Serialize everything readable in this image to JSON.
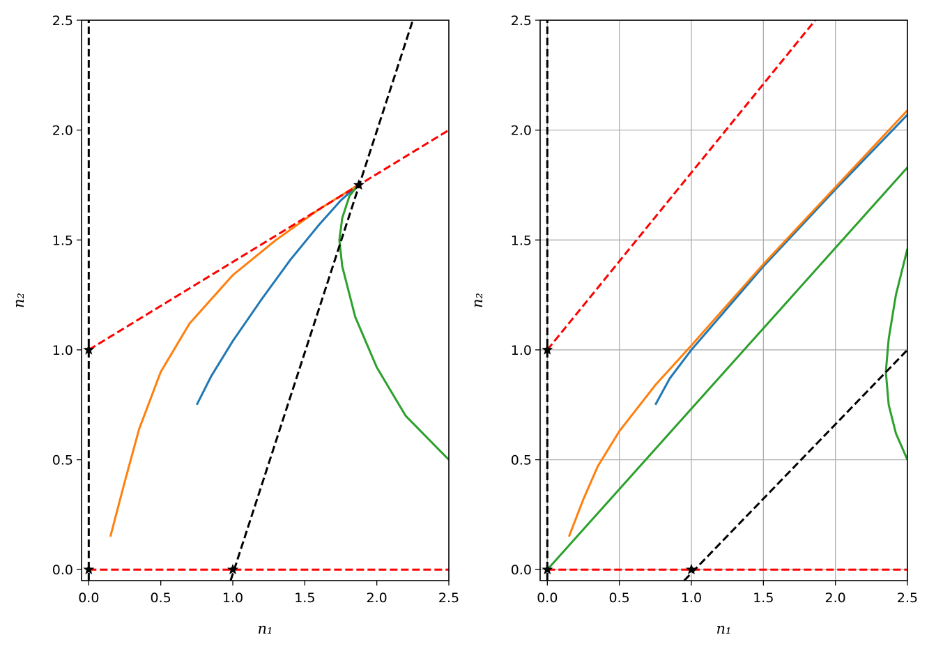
{
  "chart_data": [
    {
      "type": "line",
      "title": "",
      "xlabel": "n₁",
      "ylabel": "n₂",
      "xlim": [
        -0.05,
        2.5
      ],
      "ylim": [
        -0.05,
        2.5
      ],
      "grid": false,
      "xticks": [
        "0.0",
        "0.5",
        "1.0",
        "1.5",
        "2.0",
        "2.5"
      ],
      "yticks": [
        "0.0",
        "0.5",
        "1.0",
        "1.5",
        "2.0",
        "2.5"
      ],
      "series": [
        {
          "color": "#1f77b4",
          "style": "solid",
          "points": [
            [
              0.75,
              0.75
            ],
            [
              0.85,
              0.88
            ],
            [
              1.0,
              1.04
            ],
            [
              1.2,
              1.23
            ],
            [
              1.4,
              1.41
            ],
            [
              1.6,
              1.57
            ],
            [
              1.75,
              1.68
            ],
            [
              1.87,
              1.75
            ]
          ]
        },
        {
          "color": "#ff7f0e",
          "style": "solid",
          "points": [
            [
              0.15,
              0.15
            ],
            [
              0.25,
              0.4
            ],
            [
              0.35,
              0.64
            ],
            [
              0.5,
              0.9
            ],
            [
              0.7,
              1.12
            ],
            [
              1.0,
              1.34
            ],
            [
              1.3,
              1.5
            ],
            [
              1.6,
              1.64
            ],
            [
              1.87,
              1.75
            ]
          ]
        },
        {
          "color": "#2ca02c",
          "style": "solid",
          "points": [
            [
              2.5,
              0.5
            ],
            [
              2.2,
              0.7
            ],
            [
              2.0,
              0.92
            ],
            [
              1.85,
              1.15
            ],
            [
              1.76,
              1.38
            ],
            [
              1.74,
              1.5
            ],
            [
              1.76,
              1.6
            ],
            [
              1.81,
              1.7
            ],
            [
              1.87,
              1.75
            ]
          ]
        },
        {
          "color": "#ff0000",
          "style": "dashed",
          "points": [
            [
              0,
              1
            ],
            [
              2.5,
              2
            ]
          ]
        },
        {
          "color": "#ff0000",
          "style": "dashed",
          "points": [
            [
              0,
              0
            ],
            [
              2.5,
              0
            ]
          ]
        },
        {
          "color": "#000000",
          "style": "dashed",
          "points": [
            [
              0,
              -0.05
            ],
            [
              0,
              2.5
            ]
          ]
        },
        {
          "color": "#000000",
          "style": "dashed",
          "points": [
            [
              0.985,
              -0.05
            ],
            [
              2.25,
              2.5
            ]
          ]
        }
      ],
      "markers": [
        [
          0,
          0
        ],
        [
          1,
          0
        ],
        [
          0,
          1
        ],
        [
          1.875,
          1.75
        ]
      ]
    },
    {
      "type": "line",
      "title": "",
      "xlabel": "n₁",
      "ylabel": "n₂",
      "xlim": [
        -0.05,
        2.5
      ],
      "ylim": [
        -0.05,
        2.5
      ],
      "grid": true,
      "xticks": [
        "0.0",
        "0.5",
        "1.0",
        "1.5",
        "2.0",
        "2.5"
      ],
      "yticks": [
        "0.0",
        "0.5",
        "1.0",
        "1.5",
        "2.0",
        "2.5"
      ],
      "series": [
        {
          "color": "#1f77b4",
          "style": "solid",
          "points": [
            [
              0.75,
              0.75
            ],
            [
              0.85,
              0.87
            ],
            [
              1.0,
              1.0
            ],
            [
              1.5,
              1.38
            ],
            [
              2.0,
              1.73
            ],
            [
              2.5,
              2.07
            ]
          ]
        },
        {
          "color": "#ff7f0e",
          "style": "solid",
          "points": [
            [
              0.15,
              0.15
            ],
            [
              0.25,
              0.32
            ],
            [
              0.35,
              0.47
            ],
            [
              0.5,
              0.63
            ],
            [
              0.75,
              0.84
            ],
            [
              1.0,
              1.02
            ],
            [
              1.5,
              1.39
            ],
            [
              2.0,
              1.74
            ],
            [
              2.5,
              2.09
            ]
          ]
        },
        {
          "color": "#2ca02c",
          "style": "solid",
          "points": [
            [
              0,
              0
            ],
            [
              2.5,
              1.83
            ]
          ]
        },
        {
          "color": "#2ca02c",
          "style": "solid",
          "points": [
            [
              2.5,
              1.46
            ],
            [
              2.42,
              1.25
            ],
            [
              2.37,
              1.05
            ],
            [
              2.35,
              0.9
            ],
            [
              2.37,
              0.75
            ],
            [
              2.42,
              0.62
            ],
            [
              2.5,
              0.5
            ]
          ]
        },
        {
          "color": "#ff0000",
          "style": "dashed",
          "points": [
            [
              0,
              1
            ],
            [
              1.86,
              2.5
            ]
          ]
        },
        {
          "color": "#ff0000",
          "style": "dashed",
          "points": [
            [
              0,
              0
            ],
            [
              2.5,
              0
            ]
          ]
        },
        {
          "color": "#000000",
          "style": "dashed",
          "points": [
            [
              0,
              -0.05
            ],
            [
              0,
              2.5
            ]
          ]
        },
        {
          "color": "#000000",
          "style": "dashed",
          "points": [
            [
              0.95,
              -0.05
            ],
            [
              2.5,
              1.0
            ]
          ]
        }
      ],
      "markers": [
        [
          0,
          0
        ],
        [
          1,
          0
        ],
        [
          0,
          1
        ]
      ]
    }
  ]
}
